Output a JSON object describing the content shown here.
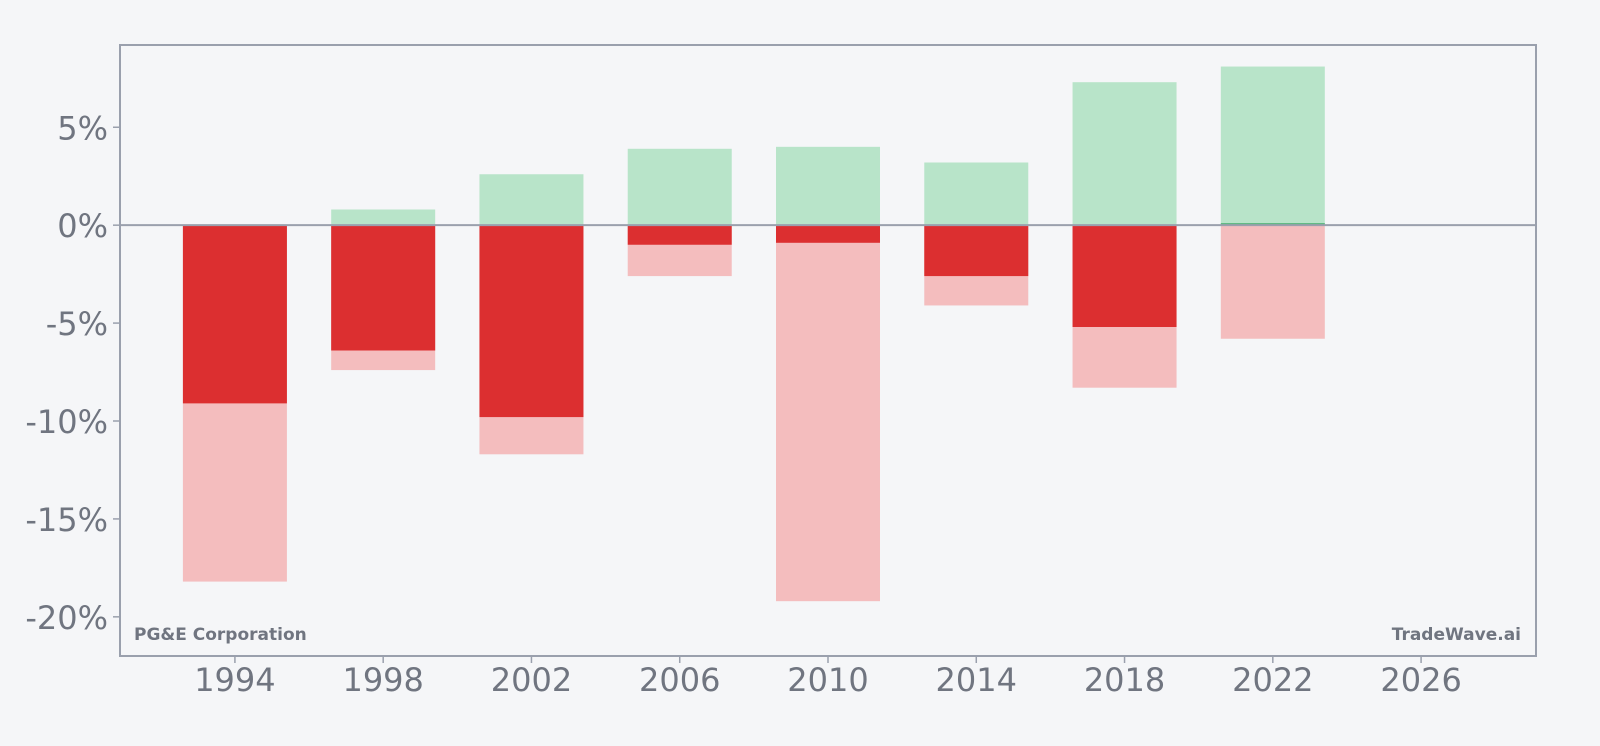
{
  "chart_data": {
    "type": "bar",
    "x": [
      1994,
      1998,
      2002,
      2006,
      2010,
      2014,
      2018,
      2022
    ],
    "series": [
      {
        "values": [
          0.0,
          0.8,
          2.6,
          3.9,
          4.0,
          3.2,
          7.3,
          8.1
        ]
      },
      {
        "values": [
          -9.1,
          -6.4,
          -9.8,
          -1.0,
          -0.9,
          -2.6,
          -5.2,
          0.1
        ]
      },
      {
        "values": [
          -18.2,
          -7.4,
          -11.7,
          -2.6,
          -19.2,
          -4.1,
          -8.3,
          -5.8
        ]
      }
    ],
    "xlim": [
      1990.9,
      2029.1
    ],
    "ylim": [
      -22.0,
      9.2
    ],
    "x_ticks": [
      "1994",
      "1998",
      "2002",
      "2006",
      "2010",
      "2014",
      "2018",
      "2022",
      "2026"
    ],
    "y_ticks": [
      "5%",
      "0%",
      "-5%",
      "-10%",
      "-15%",
      "-20%"
    ],
    "y_tick_values": [
      5,
      0,
      -5,
      -10,
      -15,
      -20
    ],
    "zero_line": true,
    "grid": false,
    "legend": "none"
  },
  "labels": {
    "company": "PG&E Corporation",
    "brand": "TradeWave.ai"
  },
  "colors": {
    "background": "#f5f6f8",
    "positive": "#b8e4c9",
    "negative_dark": "#dc2f30",
    "negative_light": "#f4bdbe",
    "positive_dark": "#4caf72",
    "axis": "#9aa0ad",
    "text": "#707580"
  }
}
